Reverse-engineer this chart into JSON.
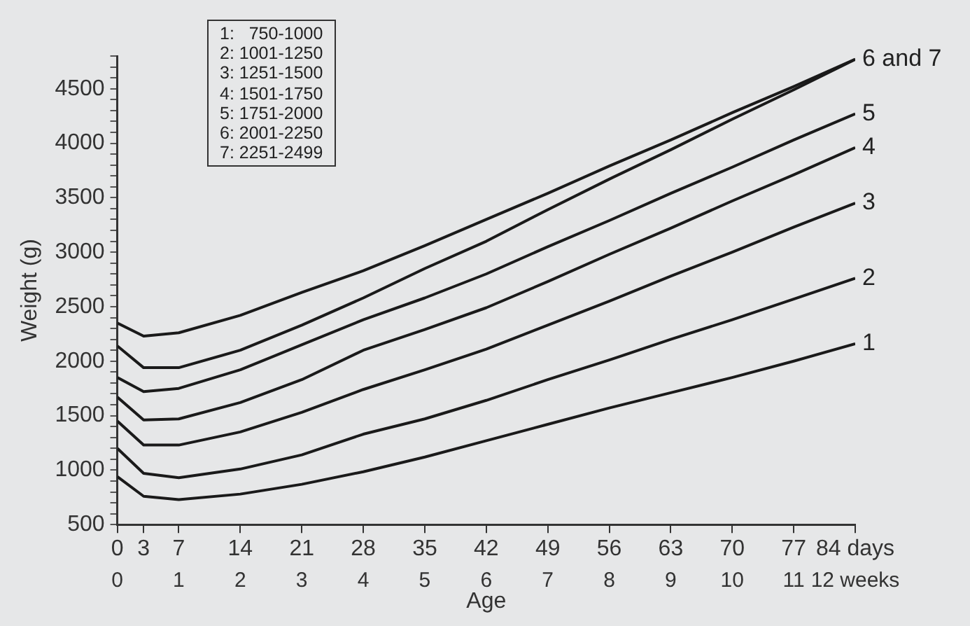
{
  "chart_data": {
    "type": "line",
    "xlabel": "Age",
    "ylabel": "Weight (g)",
    "xlim": [
      0,
      84
    ],
    "xticks": [
      0,
      3,
      7,
      14,
      21,
      28,
      35,
      42,
      49,
      56,
      63,
      70,
      77,
      {
        "value": 84,
        "label": "84 days"
      }
    ],
    "x2lim": [
      0,
      12
    ],
    "x2ticks": [
      0,
      1,
      2,
      3,
      4,
      5,
      6,
      7,
      8,
      9,
      10,
      11,
      {
        "value": 12,
        "label": "12 weeks"
      }
    ],
    "ylim": [
      500,
      4800
    ],
    "yticks": [
      500,
      {
        "value": 600,
        "label": null
      },
      {
        "value": 700,
        "label": null
      },
      {
        "value": 800,
        "label": null
      },
      {
        "value": 900,
        "label": null
      },
      1000,
      {
        "value": 1100,
        "label": null
      },
      {
        "value": 1200,
        "label": null
      },
      {
        "value": 1300,
        "label": null
      },
      {
        "value": 1400,
        "label": null
      },
      1500,
      {
        "value": 1600,
        "label": null
      },
      {
        "value": 1700,
        "label": null
      },
      {
        "value": 1800,
        "label": null
      },
      {
        "value": 1900,
        "label": null
      },
      2000,
      {
        "value": 2100,
        "label": null
      },
      {
        "value": 2200,
        "label": null
      },
      {
        "value": 2300,
        "label": null
      },
      {
        "value": 2400,
        "label": null
      },
      2500,
      {
        "value": 2600,
        "label": null
      },
      {
        "value": 2700,
        "label": null
      },
      {
        "value": 2800,
        "label": null
      },
      {
        "value": 2900,
        "label": null
      },
      3000,
      {
        "value": 3100,
        "label": null
      },
      {
        "value": 3200,
        "label": null
      },
      {
        "value": 3300,
        "label": null
      },
      {
        "value": 3400,
        "label": null
      },
      3500,
      {
        "value": 3600,
        "label": null
      },
      {
        "value": 3700,
        "label": null
      },
      {
        "value": 3800,
        "label": null
      },
      {
        "value": 3900,
        "label": null
      },
      4000,
      {
        "value": 4100,
        "label": null
      },
      {
        "value": 4200,
        "label": null
      },
      {
        "value": 4300,
        "label": null
      },
      {
        "value": 4400,
        "label": null
      },
      4500,
      {
        "value": 4600,
        "label": null
      },
      {
        "value": 4700,
        "label": null
      },
      {
        "value": 4800,
        "label": null
      }
    ],
    "x": [
      0,
      3,
      7,
      14,
      21,
      28,
      35,
      42,
      49,
      56,
      63,
      70,
      77,
      84
    ],
    "series": [
      {
        "name": "1",
        "color": "#1a1a1a",
        "values": [
          940,
          760,
          730,
          780,
          870,
          985,
          1120,
          1270,
          1420,
          1570,
          1710,
          1850,
          2000,
          2160
        ]
      },
      {
        "name": "2",
        "color": "#1a1a1a",
        "values": [
          1200,
          970,
          930,
          1010,
          1140,
          1330,
          1470,
          1640,
          1830,
          2010,
          2200,
          2380,
          2570,
          2760
        ]
      },
      {
        "name": "3",
        "color": "#1a1a1a",
        "values": [
          1450,
          1230,
          1230,
          1350,
          1530,
          1740,
          1920,
          2110,
          2330,
          2550,
          2780,
          3000,
          3230,
          3450
        ]
      },
      {
        "name": "4",
        "color": "#1a1a1a",
        "values": [
          1670,
          1460,
          1470,
          1620,
          1830,
          2100,
          2290,
          2490,
          2730,
          2980,
          3220,
          3470,
          3710,
          3960
        ]
      },
      {
        "name": "5",
        "color": "#1a1a1a",
        "values": [
          1850,
          1720,
          1750,
          1920,
          2150,
          2380,
          2580,
          2800,
          3050,
          3290,
          3540,
          3780,
          4030,
          4270
        ]
      },
      {
        "color": "#1a1a1a",
        "values": [
          2140,
          1940,
          1940,
          2100,
          2330,
          2580,
          2850,
          3100,
          3390,
          3670,
          3940,
          4220,
          4490,
          4770
        ]
      },
      {
        "color": "#1a1a1a",
        "values": [
          2350,
          2230,
          2260,
          2420,
          2630,
          2830,
          3060,
          3300,
          3540,
          3790,
          4030,
          4280,
          4520,
          4770
        ]
      }
    ],
    "annotations": [
      {
        "text": "6 and 7",
        "x": 84,
        "y": 4770
      },
      "1:   750-1000",
      "2: 1001-1250",
      "3: 1251-1500",
      "4: 1501-1750",
      "5: 1751-2000",
      "6: 2001-2250",
      "7: 2251-2499"
    ],
    "legend": false,
    "grid": false,
    "marker": "none",
    "line_style": "solid"
  }
}
